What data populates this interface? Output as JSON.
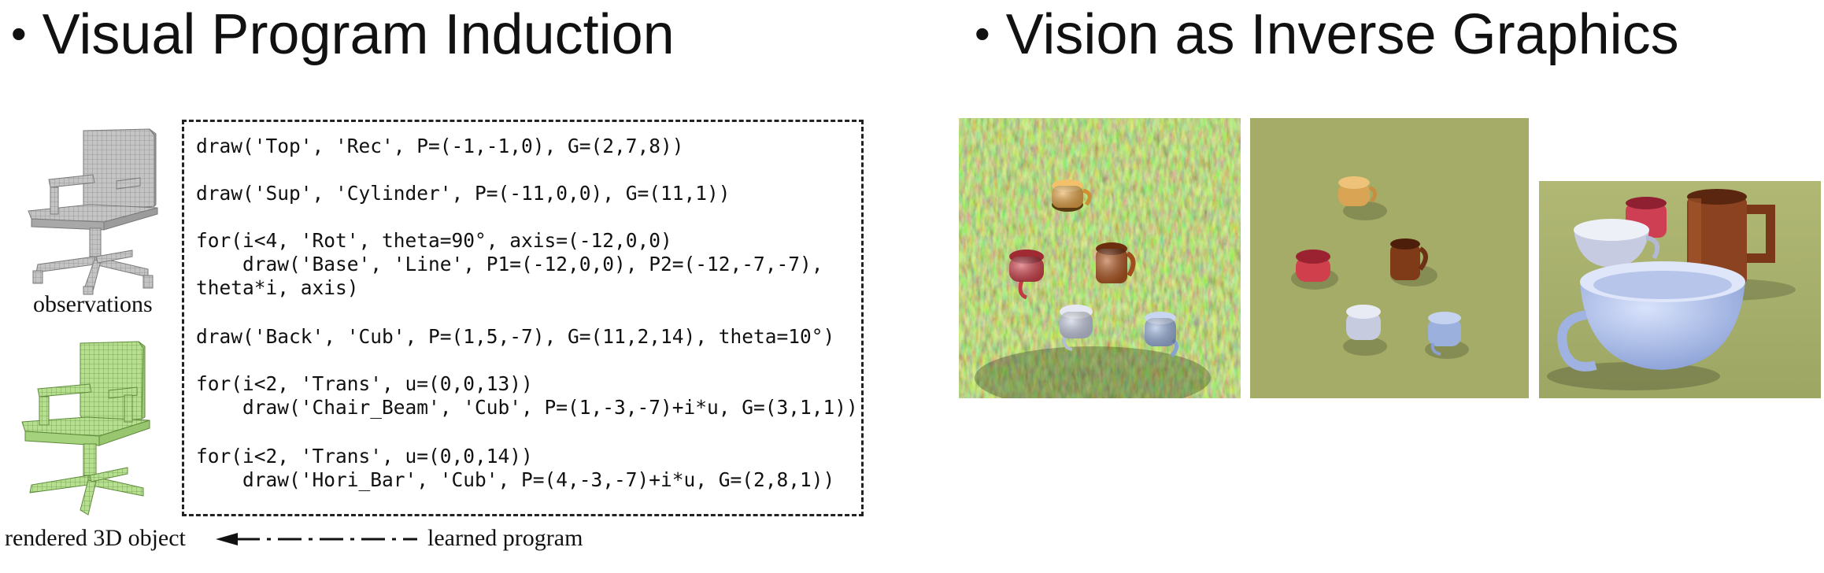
{
  "left_section": {
    "bullet": "•",
    "title": "Visual Program Induction",
    "observations_label": "observations",
    "rendered_label": "rendered 3D object",
    "learned_label": "learned program",
    "code_lines": [
      "draw('Top', 'Rec', P=(-1,-1,0), G=(2,7,8))",
      "draw('Sup', 'Cylinder', P=(-11,0,0), G=(11,1))",
      "for(i<4, 'Rot', theta=90°, axis=(-12,0,0)",
      "    draw('Base', 'Line', P1=(-12,0,0), P2=(-12,-7,-7),",
      "theta*i, axis)",
      "draw('Back', 'Cub', P=(1,5,-7), G=(11,2,14), theta=10°)",
      "for(i<2, 'Trans', u=(0,0,13))",
      "    draw('Chair_Beam', 'Cub', P=(1,-3,-7)+i*u, G=(3,1,1))",
      "for(i<2, 'Trans', u=(0,0,14))",
      "    draw('Hori_Bar', 'Cub', P=(4,-3,-7)+i*u, G=(2,8,1))"
    ]
  },
  "right_section": {
    "bullet": "•",
    "title": "Vision as Inverse Graphics"
  },
  "colors": {
    "chair_gray": "#b9b9b9",
    "chair_green": "#b3dc8c",
    "grass": "#5f7d3a",
    "ground_olive": "#a4ac67",
    "mug_yellow": "#e8a84a",
    "mug_red": "#d4454f",
    "mug_brown": "#8a3e1c",
    "mug_blue": "#aab8e0"
  }
}
